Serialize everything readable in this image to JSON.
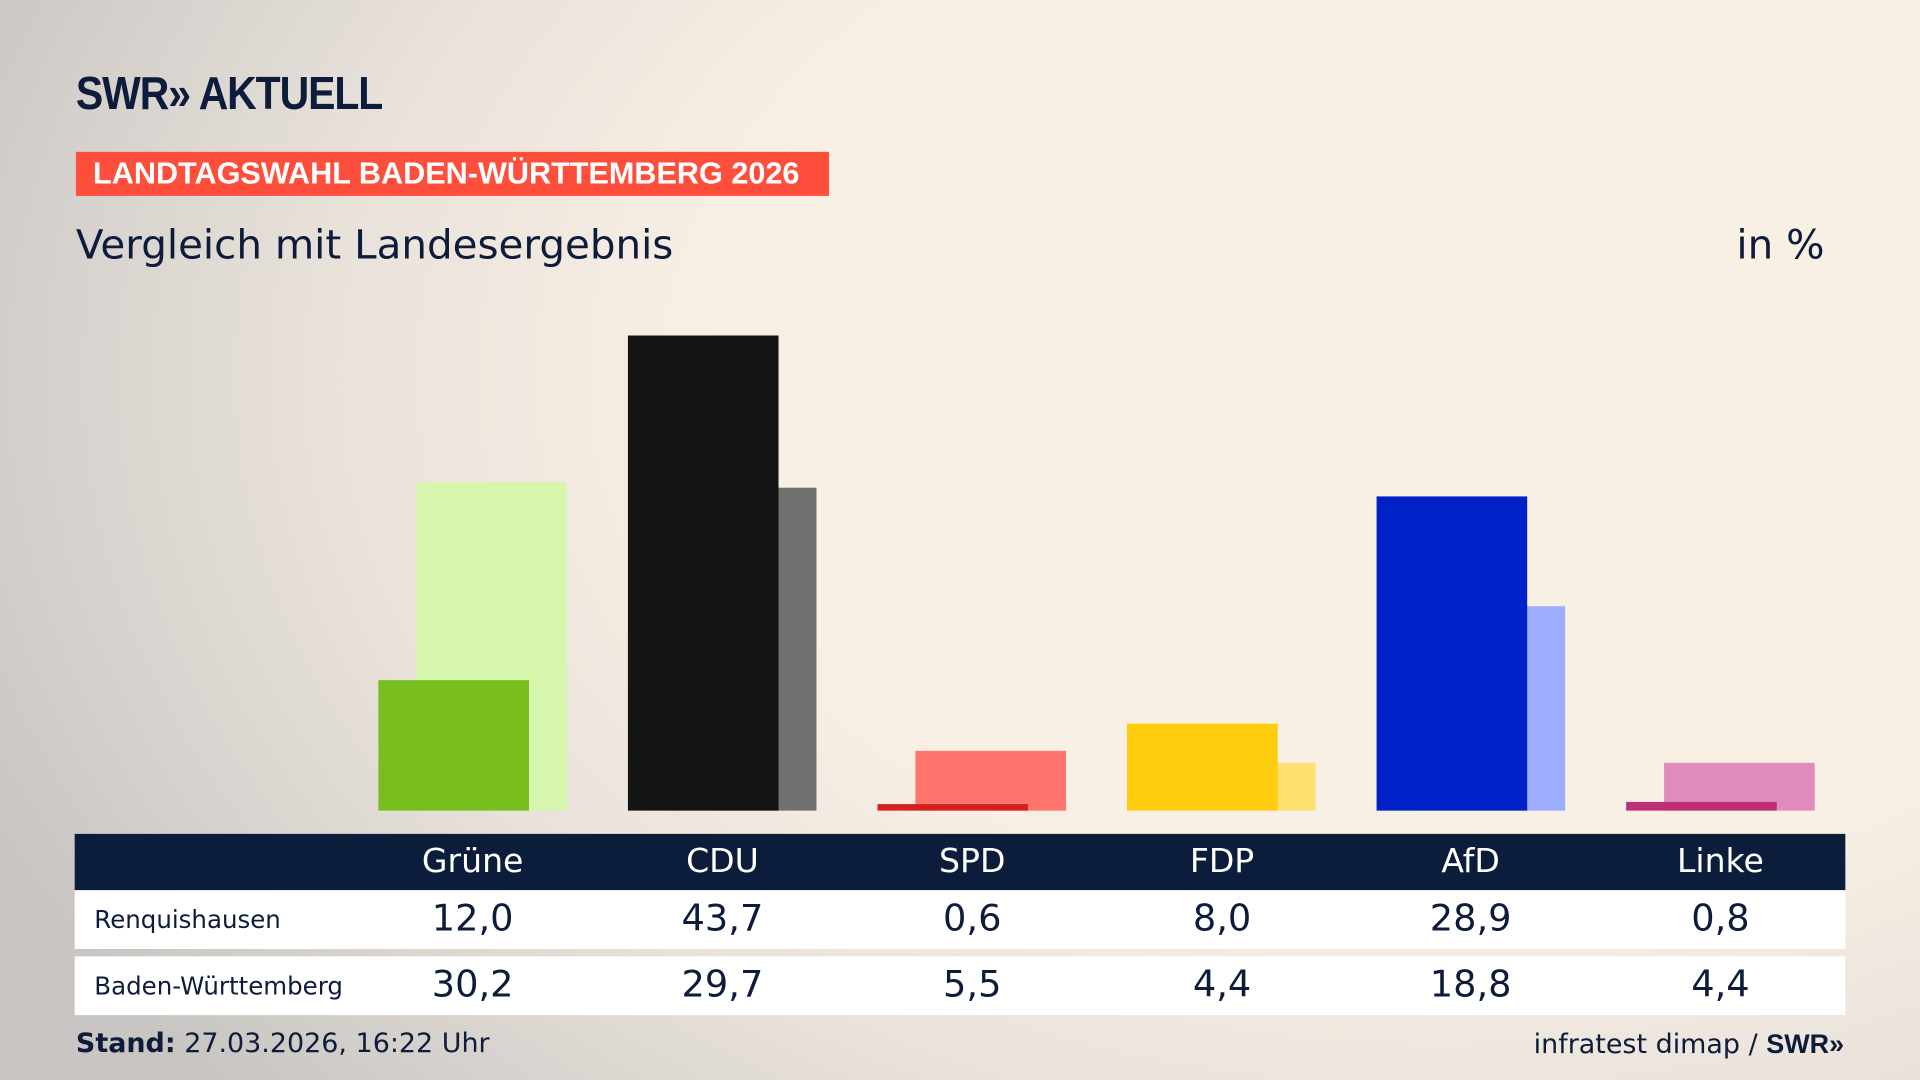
{
  "brand": {
    "logo": "SWR» AKTUELL",
    "source": "infratest dimap",
    "source_sep": "/",
    "source_logo": "SWR»"
  },
  "kicker": "LANDTAGSWAHL BADEN-WÜRTTEMBERG 2026",
  "subtitle": "Vergleich mit Landesergebnis",
  "unit": "in %",
  "footer": {
    "stand_label": "Stand:",
    "stand_value": "27.03.2026, 16:22 Uhr"
  },
  "chart_data": {
    "type": "bar",
    "title": "Vergleich mit Landesergebnis",
    "unit": "in %",
    "categories": [
      "Grüne",
      "CDU",
      "SPD",
      "FDP",
      "AfD",
      "Linke"
    ],
    "series": [
      {
        "name": "Renquishausen",
        "values": [
          12.0,
          43.7,
          0.6,
          8.0,
          28.9,
          0.8
        ],
        "labels": [
          "12,0",
          "43,7",
          "0,6",
          "8,0",
          "28,9",
          "0,8"
        ],
        "colors": [
          "#78be1e",
          "#141414",
          "#d52020",
          "#ffcc0e",
          "#0020c8",
          "#be3075"
        ]
      },
      {
        "name": "Baden-Württemberg",
        "values": [
          30.2,
          29.7,
          5.5,
          4.4,
          18.8,
          4.4
        ],
        "labels": [
          "30,2",
          "29,7",
          "5,5",
          "4,4",
          "18,8",
          "4,4"
        ],
        "colors": [
          "#d5f6ac",
          "#727170",
          "#ff756d",
          "#ffe170",
          "#9eaeff",
          "#e08bbb"
        ]
      }
    ],
    "ylim": [
      0,
      43.7
    ],
    "grid": false,
    "legend": "table below chart"
  }
}
